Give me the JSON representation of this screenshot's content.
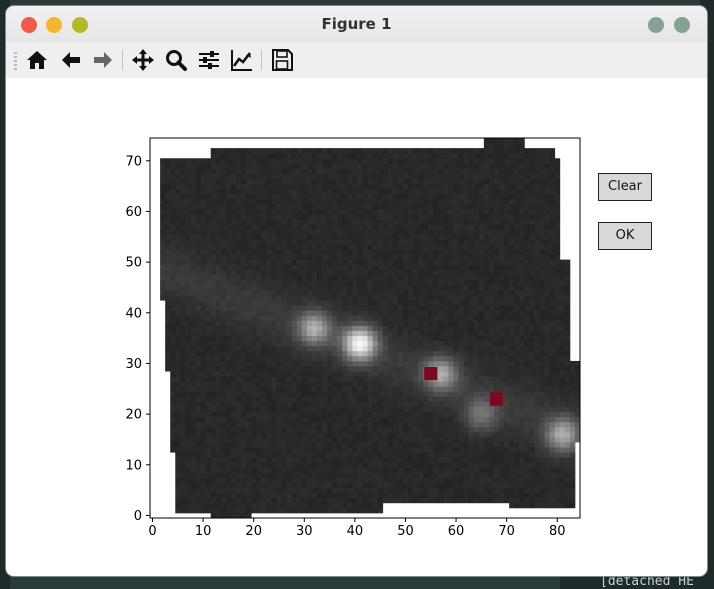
{
  "window": {
    "title": "Figure 1"
  },
  "toolbar": {
    "icons": [
      "home-icon",
      "back-arrow-icon",
      "forward-arrow-icon",
      "pan-move-icon",
      "zoom-magnifier-icon",
      "configure-subplots-icon",
      "edit-axis-curve-icon",
      "save-floppy-icon"
    ]
  },
  "buttons": {
    "clear_label": "Clear",
    "ok_label": "OK"
  },
  "terminal": {
    "bottom_text": "[detached HE"
  },
  "chart_data": {
    "type": "heatmap",
    "colormap": "gray",
    "title": "",
    "xlabel": "",
    "ylabel": "",
    "xlim": [
      -0.5,
      84.5
    ],
    "ylim": [
      -0.5,
      74.5
    ],
    "xticks": [
      "0",
      "10",
      "20",
      "30",
      "40",
      "50",
      "60",
      "70",
      "80"
    ],
    "yticks": [
      "0",
      "10",
      "20",
      "30",
      "40",
      "50",
      "60",
      "70"
    ],
    "data_region_x": [
      1,
      84
    ],
    "data_region_y": [
      0,
      75
    ],
    "bright_blobs": [
      {
        "x": 41,
        "y": 34,
        "level": "brightest"
      },
      {
        "x": 32,
        "y": 37,
        "level": "bright"
      },
      {
        "x": 57,
        "y": 28,
        "level": "bright"
      },
      {
        "x": 81,
        "y": 16,
        "level": "bright"
      },
      {
        "x": 65,
        "y": 20,
        "level": "medium"
      }
    ],
    "markers": [
      {
        "x": 55,
        "y": 28,
        "color": "#7a0a1e"
      },
      {
        "x": 68,
        "y": 23,
        "color": "#7a0a1e"
      }
    ]
  },
  "colors": {
    "marker": "#7a0a1e",
    "background_dark": "#262626"
  }
}
